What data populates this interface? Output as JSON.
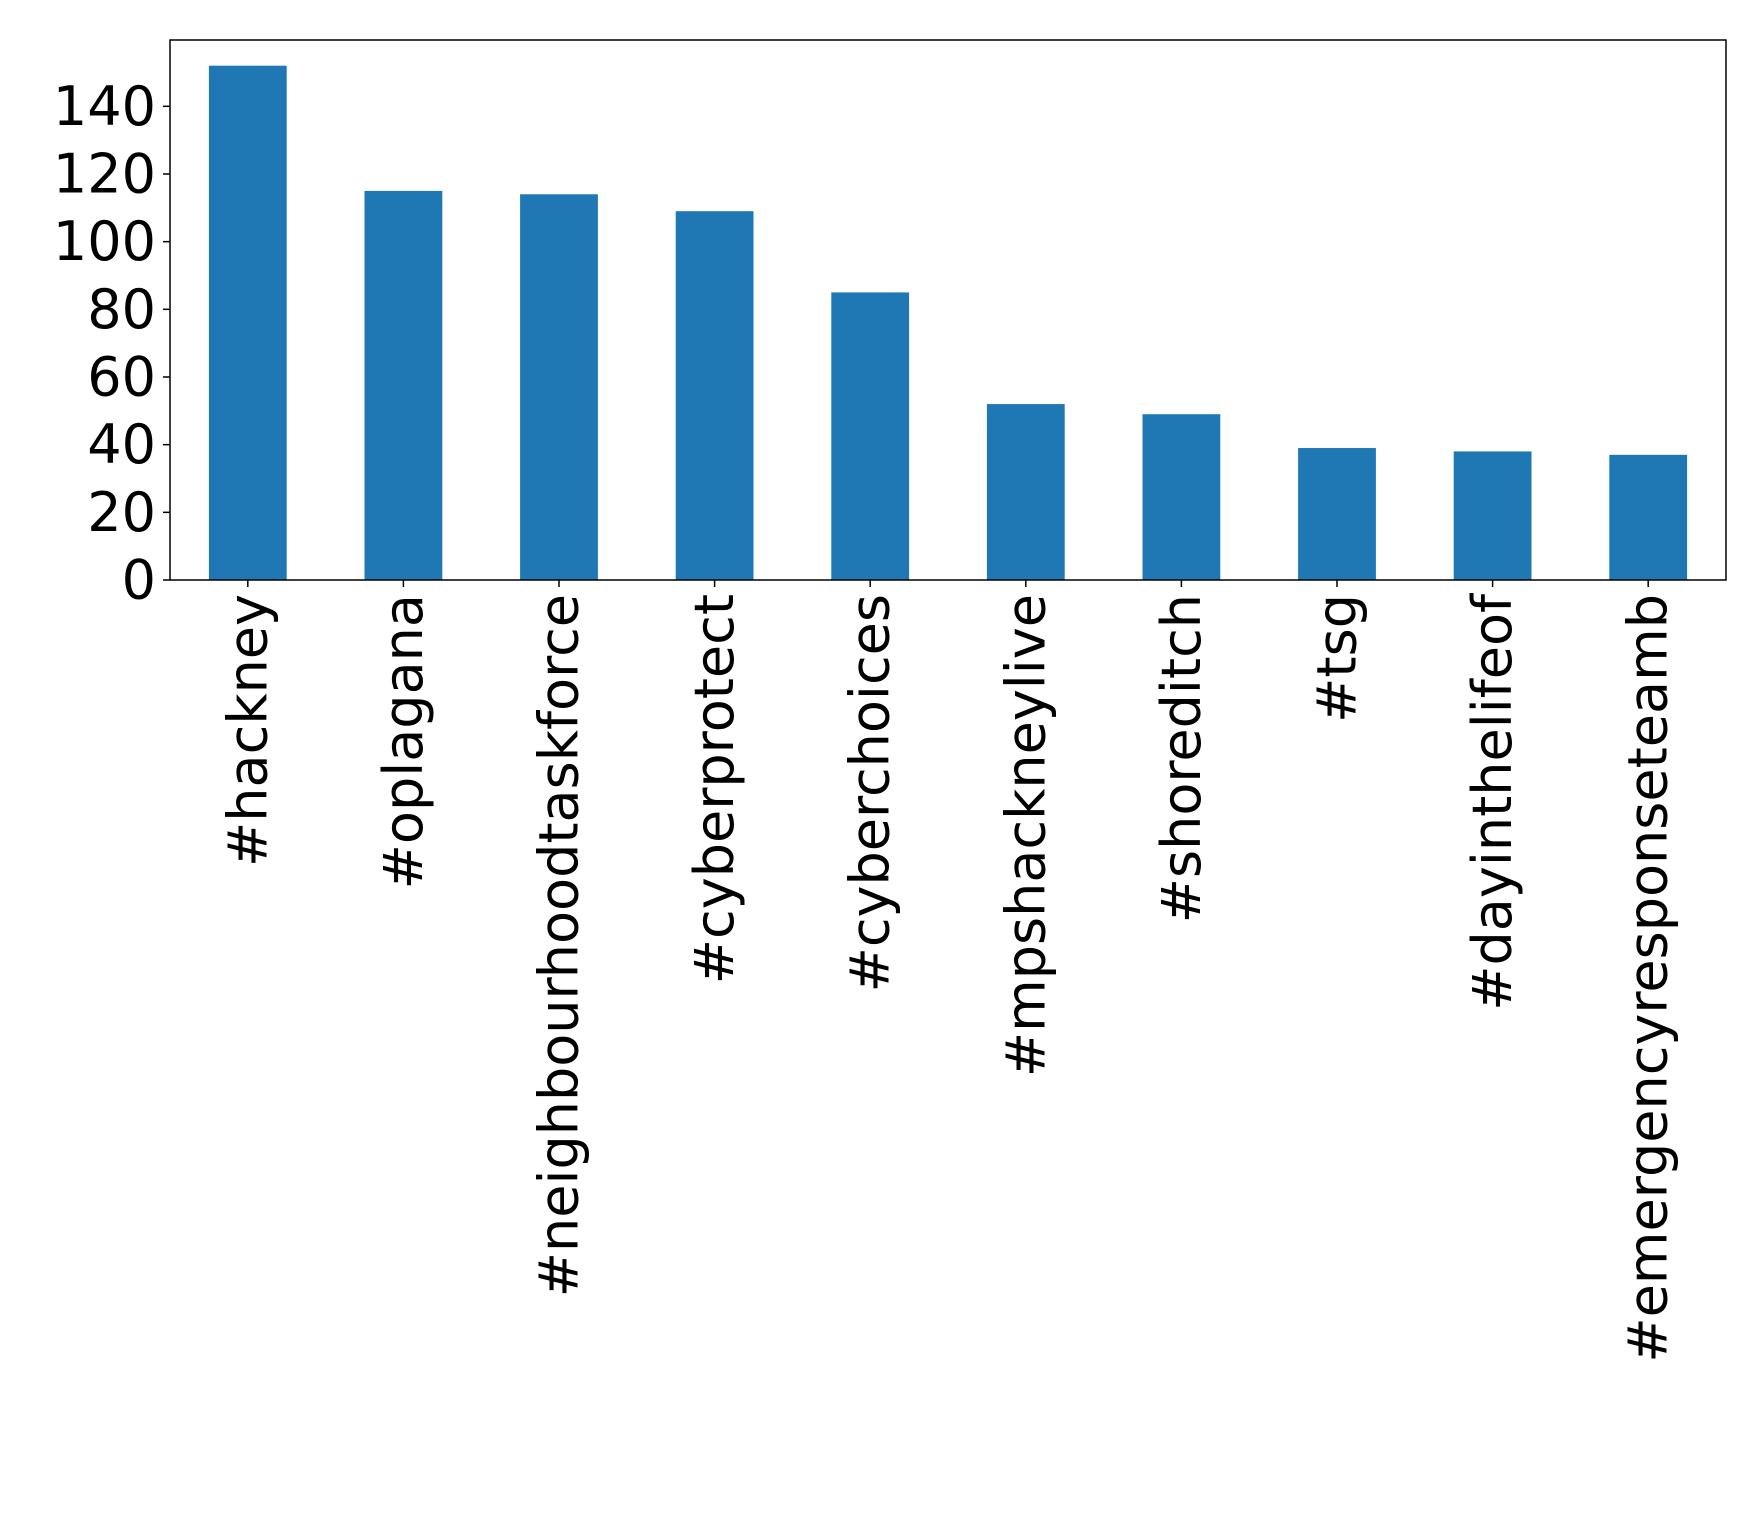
{
  "chart_data": {
    "type": "bar",
    "title": "",
    "xlabel": "",
    "ylabel": "",
    "categories": [
      "#hackney",
      "#oplagana",
      "#neighbourhoodtaskforce",
      "#cyberprotect",
      "#cyberchoices",
      "#mpshackneylive",
      "#shoreditch",
      "#tsg",
      "#dayinthelifeof",
      "#emergencyresponseteamb"
    ],
    "values": [
      152,
      115,
      114,
      109,
      85,
      52,
      49,
      39,
      38,
      37
    ],
    "ylim": [
      0,
      159.6
    ],
    "yticks": [
      "0",
      "20",
      "40",
      "60",
      "80",
      "100",
      "120",
      "140"
    ],
    "grid": false,
    "legend": "none",
    "bar_color": "#1f77b4"
  }
}
